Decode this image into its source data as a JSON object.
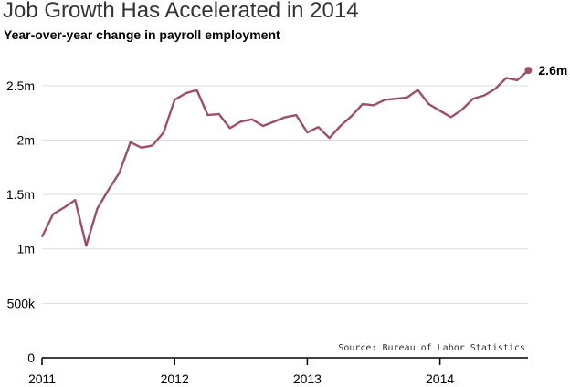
{
  "chart_data": {
    "type": "line",
    "title": "Job Growth Has Accelerated in 2014",
    "subtitle": "Year-over-year change in payroll employment",
    "source": "Source: Bureau of Labor Statistics",
    "x_tick_labels": [
      "2011",
      "2012",
      "2013",
      "2014"
    ],
    "y_tick_labels": [
      "0",
      "500k",
      "1m",
      "1.5m",
      "2m",
      "2.5m"
    ],
    "y_tick_values": [
      0,
      500000,
      1000000,
      1500000,
      2000000,
      2500000
    ],
    "ylim": [
      0,
      2700000
    ],
    "grid": true,
    "end_label": "2.6m",
    "series": [
      {
        "color": "#9c4f6b",
        "x": [
          "2011-01",
          "2011-02",
          "2011-03",
          "2011-04",
          "2011-05",
          "2011-06",
          "2011-07",
          "2011-08",
          "2011-09",
          "2011-10",
          "2011-11",
          "2011-12",
          "2012-01",
          "2012-02",
          "2012-03",
          "2012-04",
          "2012-05",
          "2012-06",
          "2012-07",
          "2012-08",
          "2012-09",
          "2012-10",
          "2012-11",
          "2012-12",
          "2013-01",
          "2013-02",
          "2013-03",
          "2013-04",
          "2013-05",
          "2013-06",
          "2013-07",
          "2013-08",
          "2013-09",
          "2013-10",
          "2013-11",
          "2013-12",
          "2014-01",
          "2014-02",
          "2014-03",
          "2014-04",
          "2014-05",
          "2014-06",
          "2014-07",
          "2014-08",
          "2014-09"
        ],
        "values": [
          1110000,
          1320000,
          1380000,
          1450000,
          1030000,
          1370000,
          1540000,
          1700000,
          1980000,
          1930000,
          1950000,
          2070000,
          2370000,
          2430000,
          2460000,
          2230000,
          2240000,
          2110000,
          2170000,
          2190000,
          2130000,
          2170000,
          2210000,
          2230000,
          2070000,
          2120000,
          2020000,
          2130000,
          2220000,
          2330000,
          2320000,
          2370000,
          2380000,
          2390000,
          2460000,
          2330000,
          2270000,
          2210000,
          2280000,
          2380000,
          2410000,
          2470000,
          2570000,
          2550000,
          2640000
        ]
      }
    ]
  }
}
